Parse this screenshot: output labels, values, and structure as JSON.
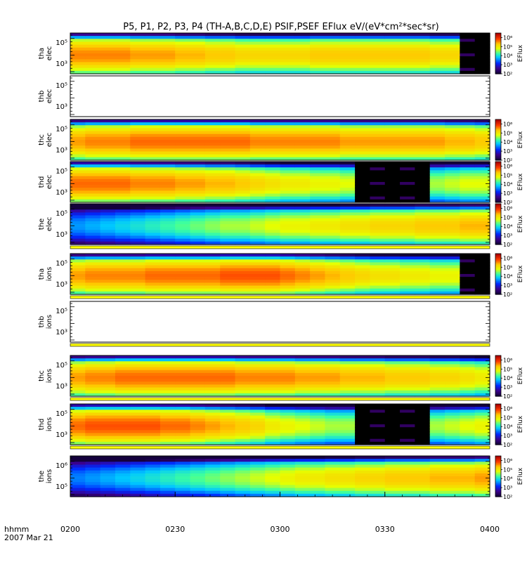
{
  "figure": {
    "title": "P5, P1, P2, P3, P4 (TH-A,B,C,D,E) PSIF,PSEF EFlux eV/(eV*cm²*sec*sr)",
    "time_axis": {
      "label_line1": "hhmm",
      "label_line2": "2007 Mar 21",
      "ticks": [
        "0200",
        "0230",
        "0300",
        "0330",
        "0400"
      ]
    },
    "colorbar": {
      "label": "EFlux",
      "tick_labels": [
        "10²",
        "10³",
        "10⁴",
        "10⁵",
        "10⁶"
      ]
    }
  },
  "chart_data": {
    "type": "heatmap",
    "title": "P5, P1, P2, P3, P4 (TH-A,B,C,D,E) PSIF,PSEF EFlux eV/(eV*cm²*sec*sr)",
    "x_axis": {
      "ticks": [
        "0200",
        "0230",
        "0300",
        "0330",
        "0400"
      ],
      "label": "hhmm"
    },
    "colorscale": {
      "label": "EFlux",
      "log": true,
      "range_exp": [
        2,
        6.5
      ],
      "ticks": [
        "10²",
        "10³",
        "10⁴",
        "10⁵",
        "10⁶"
      ]
    },
    "panels": [
      {
        "label_line1": "tha",
        "label_line2": "elec",
        "y_ticks": [
          "10⁵",
          "10³"
        ],
        "has_data": true,
        "colorbar": true,
        "profile": [
          5.6,
          5.6,
          5.6,
          5.6,
          5.5,
          5.5,
          5.5,
          5.4,
          5.4,
          5.3,
          5.3,
          5.2,
          5.2,
          5.2,
          5.2,
          5.2,
          5.3,
          5.3,
          5.3,
          5.3,
          5.3,
          5.3,
          5.3,
          5.3,
          5.2,
          5.2,
          0,
          0
        ]
      },
      {
        "label_line1": "thb",
        "label_line2": "elec",
        "y_ticks": [
          "10⁵",
          "10³"
        ],
        "has_data": false,
        "colorbar": false,
        "profile": []
      },
      {
        "label_line1": "thc",
        "label_line2": "elec",
        "y_ticks": [
          "10⁵",
          "10³"
        ],
        "has_data": true,
        "colorbar": true,
        "profile": [
          5.5,
          5.6,
          5.6,
          5.6,
          5.7,
          5.7,
          5.7,
          5.7,
          5.7,
          5.7,
          5.7,
          5.7,
          5.6,
          5.6,
          5.6,
          5.6,
          5.6,
          5.6,
          5.5,
          5.5,
          5.5,
          5.5,
          5.5,
          5.5,
          5.5,
          5.4,
          5.4,
          5.3
        ]
      },
      {
        "label_line1": "thd",
        "label_line2": "elec",
        "y_ticks": [
          "10⁵",
          "10³"
        ],
        "has_data": true,
        "colorbar": true,
        "profile": [
          5.7,
          5.7,
          5.7,
          5.7,
          5.6,
          5.6,
          5.6,
          5.5,
          5.5,
          5.4,
          5.4,
          5.3,
          5.2,
          5.1,
          5.0,
          5.0,
          4.9,
          4.9,
          4.8,
          0,
          0,
          0,
          0,
          0,
          4.6,
          4.7,
          4.8,
          4.8
        ]
      },
      {
        "label_line1": "the",
        "label_line2": "elec",
        "y_ticks": [
          "10⁵",
          "10³"
        ],
        "has_data": true,
        "colorbar": true,
        "profile": [
          3.6,
          3.7,
          3.8,
          3.9,
          4.0,
          4.1,
          4.2,
          4.3,
          4.4,
          4.5,
          4.6,
          4.6,
          4.7,
          4.8,
          4.9,
          4.9,
          5.0,
          5.0,
          5.1,
          5.1,
          5.2,
          5.2,
          5.2,
          5.3,
          5.3,
          5.3,
          5.4,
          5.4
        ]
      },
      {
        "label_line1": "tha",
        "label_line2": "ions",
        "y_ticks": [
          "10⁵",
          "10³"
        ],
        "has_data": true,
        "colorbar": true,
        "profile": [
          5.5,
          5.6,
          5.6,
          5.6,
          5.6,
          5.7,
          5.7,
          5.7,
          5.7,
          5.7,
          5.8,
          5.8,
          5.8,
          5.8,
          5.7,
          5.6,
          5.5,
          5.4,
          5.3,
          5.2,
          5.1,
          5.1,
          5.0,
          5.0,
          4.9,
          4.9,
          0,
          0
        ]
      },
      {
        "label_line1": "thb",
        "label_line2": "ions",
        "y_ticks": [
          "10⁵",
          "10³"
        ],
        "has_data": false,
        "colorbar": false,
        "profile": []
      },
      {
        "label_line1": "thc",
        "label_line2": "ions",
        "y_ticks": [
          "10⁵",
          "10³"
        ],
        "has_data": true,
        "colorbar": true,
        "profile": [
          5.5,
          5.6,
          5.6,
          5.7,
          5.7,
          5.7,
          5.7,
          5.7,
          5.7,
          5.7,
          5.7,
          5.6,
          5.6,
          5.6,
          5.6,
          5.5,
          5.5,
          5.5,
          5.4,
          5.4,
          5.4,
          5.3,
          5.3,
          5.3,
          5.2,
          5.2,
          5.1,
          5.0
        ]
      },
      {
        "label_line1": "thd",
        "label_line2": "ions",
        "y_ticks": [
          "10⁵",
          "10³"
        ],
        "has_data": true,
        "colorbar": true,
        "profile": [
          5.7,
          5.8,
          5.8,
          5.8,
          5.8,
          5.8,
          5.7,
          5.7,
          5.6,
          5.5,
          5.4,
          5.3,
          5.2,
          5.0,
          4.9,
          4.8,
          4.7,
          4.6,
          4.6,
          0,
          0,
          0,
          0,
          0,
          4.6,
          4.7,
          4.8,
          4.9
        ]
      },
      {
        "label_line1": "the",
        "label_line2": "ions",
        "y_ticks": [
          "10⁶",
          "10⁵"
        ],
        "has_data": true,
        "colorbar": true,
        "profile": [
          3.5,
          3.6,
          3.7,
          3.8,
          3.9,
          4.0,
          4.1,
          4.2,
          4.3,
          4.4,
          4.5,
          4.6,
          4.7,
          4.8,
          4.9,
          5.0,
          5.0,
          5.1,
          5.1,
          5.2,
          5.2,
          5.3,
          5.3,
          5.3,
          5.4,
          5.4,
          5.4,
          5.5
        ]
      }
    ]
  }
}
